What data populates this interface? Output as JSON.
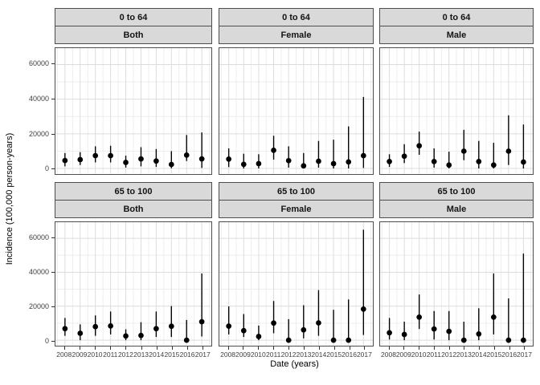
{
  "colors": {
    "point": "#000000",
    "errorbar": "#000000",
    "strip_fill": "#d9d9d9",
    "panel_border": "#4d4d4d",
    "grid_major": "#dcdcdc",
    "grid_minor": "#ededed",
    "tick_mark": "#333333",
    "tick_text": "#404040"
  },
  "chart_data": {
    "type": "scatter",
    "title": "",
    "xlabel": "Date (years)",
    "ylabel": "Incidence (100,000 person-years)",
    "x": [
      2008,
      2009,
      2010,
      2011,
      2012,
      2013,
      2014,
      2015,
      2016,
      2017
    ],
    "x_tick_labels": [
      "2008",
      "2009",
      "2010",
      "2011",
      "2012",
      "2013",
      "2014",
      "2015",
      "2016",
      "2017"
    ],
    "y_ticks": [
      0,
      20000,
      40000,
      60000
    ],
    "y_tick_labels": [
      "0",
      "20000",
      "40000",
      "60000"
    ],
    "y_minor_ticks": [
      10000,
      30000,
      50000
    ],
    "ylim": [
      -3000,
      69500
    ],
    "grid": true,
    "legend": "none",
    "facet_rows": [
      "0 to 64",
      "65 to 100"
    ],
    "facet_cols": [
      "Both",
      "Female",
      "Male"
    ],
    "facets": [
      {
        "row_label": "0 to 64",
        "col_label": "Both",
        "y": [
          4600,
          5100,
          7400,
          7400,
          3500,
          5500,
          4300,
          2300,
          7700,
          5500
        ],
        "lo": [
          1200,
          2000,
          3500,
          3500,
          500,
          1200,
          900,
          100,
          4300,
          300
        ],
        "hi": [
          8900,
          9400,
          12800,
          13100,
          7400,
          12300,
          11200,
          10000,
          19300,
          20800
        ]
      },
      {
        "row_label": "0 to 64",
        "col_label": "Female",
        "y": [
          5400,
          2400,
          2800,
          10500,
          4500,
          1500,
          4200,
          2800,
          3800,
          7400
        ],
        "lo": [
          800,
          0,
          0,
          5100,
          500,
          0,
          500,
          0,
          0,
          300
        ],
        "hi": [
          11600,
          8500,
          8200,
          18900,
          12800,
          8900,
          15900,
          16600,
          24300,
          41300
        ]
      },
      {
        "row_label": "0 to 64",
        "col_label": "Male",
        "y": [
          4000,
          7100,
          13100,
          4000,
          2000,
          10000,
          4000,
          2000,
          10000,
          3700
        ],
        "lo": [
          900,
          3100,
          7900,
          500,
          0,
          4800,
          0,
          0,
          2000,
          0
        ],
        "hi": [
          8200,
          14000,
          21300,
          11600,
          9700,
          22300,
          15900,
          14800,
          30700,
          25400
        ]
      },
      {
        "row_label": "65 to 100",
        "col_label": "Both",
        "y": [
          6800,
          4100,
          8000,
          8400,
          2500,
          2800,
          6800,
          8200,
          0,
          10900
        ],
        "lo": [
          2600,
          0,
          2600,
          3400,
          0,
          0,
          1900,
          1900,
          0,
          2200
        ],
        "hi": [
          13100,
          9300,
          14600,
          16900,
          6400,
          10600,
          16900,
          20100,
          11900,
          39300
        ]
      },
      {
        "row_label": "65 to 100",
        "col_label": "Female",
        "y": [
          8300,
          5600,
          2200,
          10100,
          0,
          6100,
          10200,
          0,
          0,
          18300
        ],
        "lo": [
          3400,
          1900,
          0,
          4100,
          0,
          1100,
          2600,
          0,
          0,
          3100
        ],
        "hi": [
          19900,
          15400,
          8600,
          23100,
          12400,
          20600,
          29500,
          17900,
          24000,
          65100
        ]
      },
      {
        "row_label": "65 to 100",
        "col_label": "Male",
        "y": [
          4400,
          3400,
          13600,
          6600,
          5200,
          0,
          3700,
          13600,
          0,
          0
        ],
        "lo": [
          400,
          0,
          6600,
          400,
          0,
          0,
          0,
          3400,
          0,
          0
        ],
        "hi": [
          13100,
          10900,
          26900,
          17200,
          17200,
          10900,
          18800,
          39300,
          24600,
          51000
        ]
      }
    ]
  }
}
